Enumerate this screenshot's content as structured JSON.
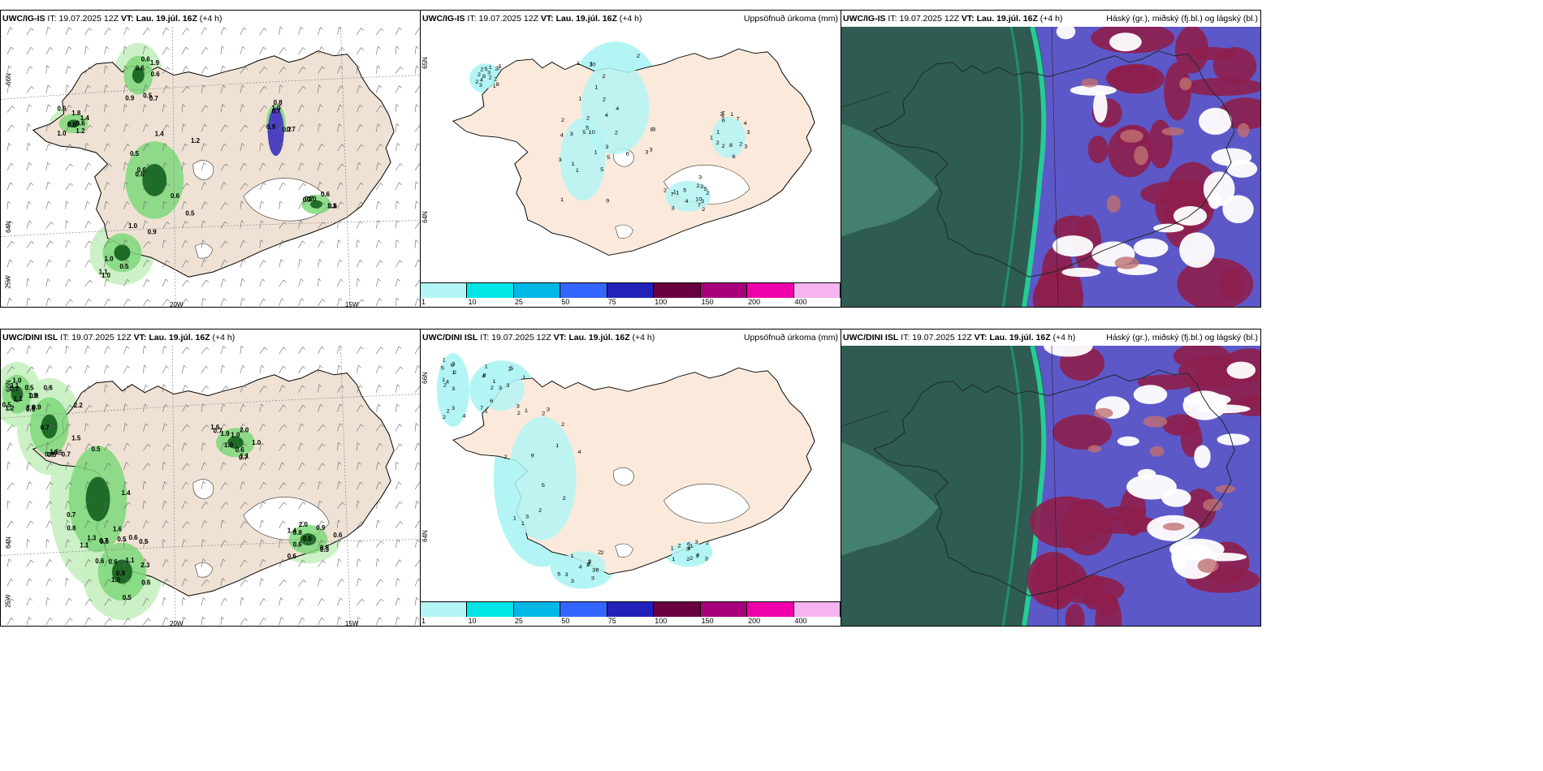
{
  "panels": [
    {
      "id": "p1",
      "model": "UWC/IG-IS",
      "it_label": "IT:",
      "it": "19.07.2025 12Z",
      "vt_label": "VT:",
      "vt": "Lau. 19.júl. 16Z",
      "lead": "(+4 h)",
      "right": ""
    },
    {
      "id": "p2",
      "model": "UWC/IG-IS",
      "it_label": "IT:",
      "it": "19.07.2025 12Z",
      "vt_label": "VT:",
      "vt": "Lau. 19.júl. 16Z",
      "lead": "(+4 h)",
      "right": "Uppsöfnuð úrkoma (mm)"
    },
    {
      "id": "p3",
      "model": "UWC/IG-IS",
      "it_label": "IT:",
      "it": "19.07.2025 12Z",
      "vt_label": "VT:",
      "vt": "Lau. 19.júl. 16Z",
      "lead": "(+4 h)",
      "right": "Háský (gr.), miðský (fj.bl.) og lágský (bl.)"
    },
    {
      "id": "p4",
      "model": "UWC/DINI ISL",
      "it_label": "IT:",
      "it": "19.07.2025 12Z",
      "vt_label": "VT:",
      "vt": "Lau. 19.júl. 16Z",
      "lead": "(+4 h)",
      "right": ""
    },
    {
      "id": "p5",
      "model": "UWC/DINI ISL",
      "it_label": "IT:",
      "it": "19.07.2025 12Z",
      "vt_label": "VT:",
      "vt": "Lau. 19.júl. 16Z",
      "lead": "(+4 h)",
      "right": "Uppsöfnuð úrkoma (mm)"
    },
    {
      "id": "p6",
      "model": "UWC/DINI ISL",
      "it_label": "IT:",
      "it": "19.07.2025 12Z",
      "vt_label": "VT:",
      "vt": "Lau. 19.júl. 16Z",
      "lead": "(+4 h)",
      "right": "Háský (gr.), miðský (fj.bl.) og lágský (bl.)"
    }
  ],
  "axis_labels": {
    "lat66": "66N",
    "lat64": "64N",
    "lon25": "25W",
    "lon20": "20W",
    "lon15": "15W"
  },
  "colorbar": {
    "labels": [
      "1",
      "10",
      "25",
      "50",
      "75",
      "100",
      "150",
      "200",
      "400"
    ],
    "colors": [
      "#b3f5f5",
      "#00e6e6",
      "#00b7e6",
      "#3366ff",
      "#2222bb",
      "#6a0040",
      "#a8007a",
      "#ee00aa",
      "#f5b3f0"
    ]
  },
  "top_precip_values": [
    "0.6",
    "0.6",
    "0.8",
    "0.9",
    "0.7",
    "0.5",
    "1.9",
    "0.5",
    "1.2",
    "0.7",
    "0.7",
    "0.9",
    "0.7",
    "0.6",
    "1.0",
    "0.7",
    "0.6",
    "1.0",
    "0.9",
    "1.4",
    "0.6",
    "0.7",
    "1.0",
    "1.0",
    "0.5",
    "0.6",
    "1.4",
    "1.0",
    "1.3",
    "1.1",
    "0.6",
    "0.5",
    "0.6",
    "0.8",
    "0.6",
    "1.0",
    "0.6",
    "1.2",
    "1.8"
  ],
  "bottom_precip_values": [
    "0.9",
    "0.6",
    "1.1",
    "1.6",
    "0.6",
    "0.5",
    "1.5",
    "0.7",
    "2.3",
    "1.9",
    "0.6",
    "0.9",
    "0.5",
    "0.6",
    "0.5",
    "1.1",
    "0.8",
    "0.8",
    "1.5",
    "1.4",
    "0.7",
    "1.0",
    "0.8",
    "0.7",
    "0.5",
    "1.1",
    "0.6",
    "0.7",
    "2.0",
    "3.1",
    "1.9",
    "1.6",
    "0.6",
    "0.6",
    "0.5",
    "1.0",
    "0.8",
    "0.5",
    "0.9",
    "1.0",
    "0.6",
    "1.2",
    "0.7",
    "0.8",
    "0.6",
    "2.0",
    "1.4",
    "1.1",
    "0.6",
    "0.5",
    "0.5",
    "0.7",
    "0.5",
    "0.5",
    "2.2",
    "1.3",
    "1.0",
    "1.0",
    "0.9",
    "0.5",
    "0.7"
  ],
  "top_accum_values": [
    "2",
    "3",
    "2",
    "3",
    "8",
    "8",
    "1",
    "3",
    "3",
    "2",
    "1",
    "5",
    "5",
    "2",
    "2",
    "4",
    "1",
    "2",
    "7",
    "5",
    "3",
    "5",
    "3",
    "2",
    "3",
    "2",
    "1",
    "7",
    "6",
    "2",
    "1",
    "9",
    "7",
    "1",
    "2",
    "1",
    "5",
    "10",
    "4",
    "2",
    "6",
    "4",
    "4",
    "8",
    "8",
    "10",
    "10",
    "3",
    "6",
    "3",
    "3",
    "3",
    "2",
    "7",
    "4",
    "2",
    "5",
    "3",
    "2",
    "2",
    "3",
    "4",
    "5",
    "2",
    "2",
    "1",
    "2",
    "1",
    "2",
    "1",
    "1",
    "3",
    "1",
    "1",
    "1",
    "2",
    "2",
    "2",
    "1",
    "1"
  ],
  "bottom_accum_values": [
    "5",
    "4",
    "3",
    "1",
    "1",
    "3",
    "5",
    "2",
    "3",
    "1",
    "2",
    "1",
    "2",
    "2",
    "4",
    "1",
    "1",
    "1",
    "1",
    "3",
    "9",
    "7",
    "2",
    "6",
    "3",
    "2",
    "8",
    "3",
    "1",
    "3",
    "4",
    "3",
    "3",
    "3",
    "1",
    "2",
    "6",
    "4",
    "3",
    "6",
    "3",
    "1",
    "4",
    "1",
    "3",
    "2",
    "3",
    "2",
    "2",
    "2",
    "1",
    "1",
    "5",
    "4",
    "3",
    "1",
    "1",
    "1",
    "2",
    "2",
    "2",
    "2",
    "1",
    "2",
    "2",
    "3",
    "2",
    "6",
    "4",
    "5",
    "2"
  ]
}
